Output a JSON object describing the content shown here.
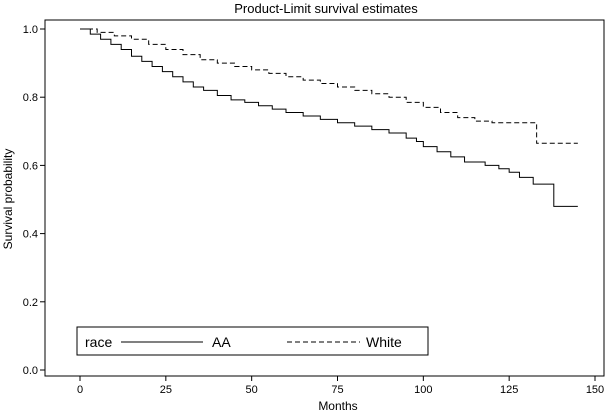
{
  "chart_data": {
    "type": "line",
    "title": "Product-Limit survival estimates",
    "xlabel": "Months",
    "ylabel": "Survival probability",
    "xlim": [
      -10,
      150
    ],
    "ylim": [
      0.0,
      1.0
    ],
    "x_ticks": [
      0,
      25,
      50,
      75,
      100,
      125,
      150
    ],
    "y_ticks": [
      0.0,
      0.2,
      0.4,
      0.6,
      0.8,
      1.0
    ],
    "y_tick_labels": [
      "0.0",
      "0.2",
      "0.4",
      "0.6",
      "0.8",
      "1.0"
    ],
    "grid": false,
    "legend": {
      "title": "race",
      "position": "bottom-left",
      "box": true
    },
    "step": true,
    "series": [
      {
        "name": "AA",
        "style": "solid",
        "color": "#000000",
        "points": [
          [
            0,
            1.0
          ],
          [
            3,
            0.985
          ],
          [
            6,
            0.97
          ],
          [
            9,
            0.955
          ],
          [
            12,
            0.94
          ],
          [
            15,
            0.92
          ],
          [
            18,
            0.905
          ],
          [
            21,
            0.89
          ],
          [
            24,
            0.875
          ],
          [
            27,
            0.86
          ],
          [
            30,
            0.845
          ],
          [
            33,
            0.83
          ],
          [
            36,
            0.82
          ],
          [
            40,
            0.805
          ],
          [
            44,
            0.792
          ],
          [
            48,
            0.785
          ],
          [
            52,
            0.775
          ],
          [
            56,
            0.765
          ],
          [
            60,
            0.755
          ],
          [
            65,
            0.745
          ],
          [
            70,
            0.735
          ],
          [
            75,
            0.725
          ],
          [
            80,
            0.715
          ],
          [
            85,
            0.705
          ],
          [
            90,
            0.695
          ],
          [
            95,
            0.68
          ],
          [
            98,
            0.67
          ],
          [
            100,
            0.655
          ],
          [
            104,
            0.64
          ],
          [
            108,
            0.625
          ],
          [
            112,
            0.61
          ],
          [
            118,
            0.6
          ],
          [
            122,
            0.59
          ],
          [
            125,
            0.58
          ],
          [
            128,
            0.565
          ],
          [
            132,
            0.545
          ],
          [
            138,
            0.48
          ],
          [
            145,
            0.48
          ]
        ]
      },
      {
        "name": "White",
        "style": "dashed",
        "color": "#000000",
        "points": [
          [
            0,
            1.0
          ],
          [
            5,
            0.99
          ],
          [
            10,
            0.98
          ],
          [
            15,
            0.97
          ],
          [
            20,
            0.955
          ],
          [
            25,
            0.94
          ],
          [
            30,
            0.925
          ],
          [
            35,
            0.91
          ],
          [
            40,
            0.9
          ],
          [
            45,
            0.89
          ],
          [
            50,
            0.88
          ],
          [
            55,
            0.87
          ],
          [
            60,
            0.86
          ],
          [
            65,
            0.85
          ],
          [
            70,
            0.84
          ],
          [
            75,
            0.83
          ],
          [
            80,
            0.82
          ],
          [
            85,
            0.81
          ],
          [
            90,
            0.8
          ],
          [
            95,
            0.785
          ],
          [
            100,
            0.77
          ],
          [
            105,
            0.755
          ],
          [
            110,
            0.74
          ],
          [
            115,
            0.73
          ],
          [
            120,
            0.725
          ],
          [
            133,
            0.665
          ],
          [
            145,
            0.665
          ]
        ]
      }
    ]
  }
}
